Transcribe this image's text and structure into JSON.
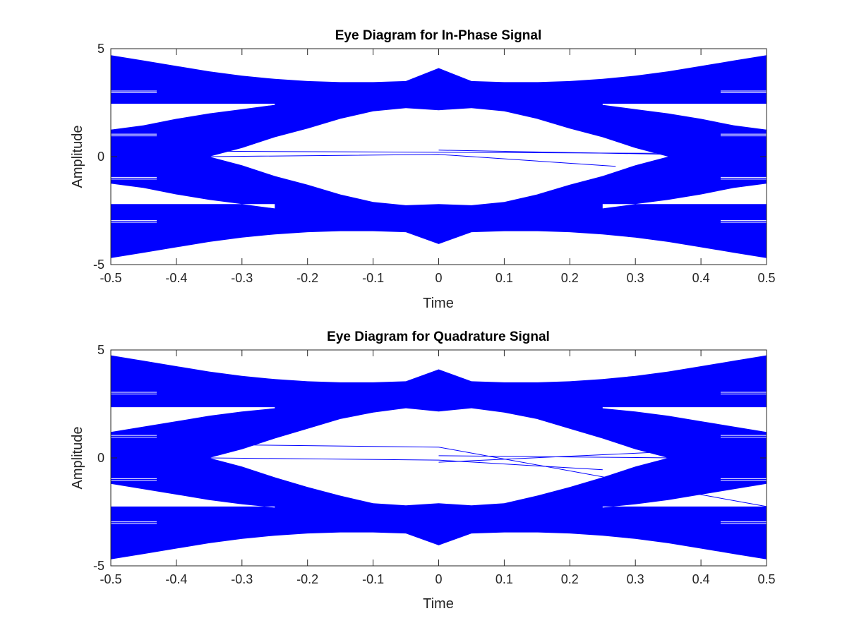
{
  "chart_data": [
    {
      "type": "line",
      "title": "Eye Diagram for In-Phase Signal",
      "xlabel": "Time",
      "ylabel": "Amplitude",
      "xlim": [
        -0.5,
        0.5
      ],
      "ylim": [
        -5,
        5
      ],
      "xticks": [
        "-0.5",
        "-0.4",
        "-0.3",
        "-0.2",
        "-0.1",
        "0",
        "0.1",
        "0.2",
        "0.3",
        "0.4",
        "0.5"
      ],
      "yticks": [
        "-5",
        "0",
        "5"
      ],
      "series_color": "#0000ff",
      "levels": [
        -3,
        -1,
        1,
        3
      ],
      "x": [
        -0.5,
        -0.45,
        -0.4,
        -0.35,
        -0.3,
        -0.25,
        -0.2,
        -0.15,
        -0.1,
        -0.05,
        0,
        0.05,
        0.1,
        0.15,
        0.2,
        0.25,
        0.3,
        0.35,
        0.4,
        0.45,
        0.5
      ],
      "envelope_upper": [
        4.7,
        4.45,
        4.2,
        3.95,
        3.75,
        3.6,
        3.5,
        3.45,
        3.45,
        3.5,
        4.1,
        3.5,
        3.45,
        3.45,
        3.5,
        3.6,
        3.75,
        3.95,
        4.2,
        4.45,
        4.7
      ],
      "envelope_lower": [
        -4.7,
        -4.45,
        -4.2,
        -3.95,
        -3.75,
        -3.6,
        -3.5,
        -3.45,
        -3.45,
        -3.5,
        -4.05,
        -3.5,
        -3.45,
        -3.45,
        -3.5,
        -3.6,
        -3.75,
        -3.95,
        -4.2,
        -4.45,
        -4.7
      ],
      "eye_upper": [
        null,
        null,
        null,
        0.0,
        0.4,
        0.9,
        1.3,
        1.75,
        2.1,
        2.25,
        2.15,
        2.25,
        2.1,
        1.75,
        1.3,
        0.9,
        0.4,
        0.0,
        null,
        null,
        null
      ],
      "eye_lower": [
        null,
        null,
        null,
        0.0,
        -0.4,
        -0.9,
        -1.3,
        -1.75,
        -2.1,
        -2.25,
        -2.2,
        -2.25,
        -2.1,
        -1.75,
        -1.3,
        -0.9,
        -0.4,
        0.0,
        null,
        null,
        null
      ],
      "outer_gap_upper": {
        "x": [
          -0.5,
          -0.45,
          -0.4,
          -0.35,
          -0.3,
          -0.25
        ],
        "top": [
          2.45,
          2.45,
          2.45,
          2.45,
          2.45,
          2.45
        ],
        "bottom": [
          1.25,
          1.45,
          1.75,
          2.0,
          2.2,
          2.4
        ]
      },
      "outer_gap_lower": {
        "x": [
          -0.5,
          -0.45,
          -0.4,
          -0.35,
          -0.3,
          -0.25
        ],
        "top": [
          -1.25,
          -1.45,
          -1.75,
          -2.0,
          -2.2,
          -2.4
        ],
        "bottom": [
          -2.2,
          -2.2,
          -2.2,
          -2.2,
          -2.2,
          -2.2
        ]
      },
      "stray_traces": [
        {
          "x": [
            -0.35,
            0.36
          ],
          "y": [
            0.25,
            0.15
          ]
        },
        {
          "x": [
            -0.35,
            0.0,
            0.27
          ],
          "y": [
            0.0,
            0.1,
            -0.45
          ]
        },
        {
          "x": [
            0.0,
            0.36
          ],
          "y": [
            0.3,
            0.1
          ]
        }
      ]
    },
    {
      "type": "line",
      "title": "Eye Diagram for Quadrature Signal",
      "xlabel": "Time",
      "ylabel": "Amplitude",
      "xlim": [
        -0.5,
        0.5
      ],
      "ylim": [
        -5,
        5
      ],
      "xticks": [
        "-0.5",
        "-0.4",
        "-0.3",
        "-0.2",
        "-0.1",
        "0",
        "0.1",
        "0.2",
        "0.3",
        "0.4",
        "0.5"
      ],
      "yticks": [
        "-5",
        "0",
        "5"
      ],
      "series_color": "#0000ff",
      "levels": [
        -3,
        -1,
        1,
        3
      ],
      "x": [
        -0.5,
        -0.45,
        -0.4,
        -0.35,
        -0.3,
        -0.25,
        -0.2,
        -0.15,
        -0.1,
        -0.05,
        0,
        0.05,
        0.1,
        0.15,
        0.2,
        0.25,
        0.3,
        0.35,
        0.4,
        0.45,
        0.5
      ],
      "envelope_upper": [
        4.75,
        4.5,
        4.25,
        4.0,
        3.8,
        3.65,
        3.55,
        3.5,
        3.5,
        3.55,
        4.1,
        3.55,
        3.5,
        3.5,
        3.55,
        3.65,
        3.8,
        4.0,
        4.25,
        4.5,
        4.75
      ],
      "envelope_lower": [
        -4.7,
        -4.45,
        -4.2,
        -3.95,
        -3.75,
        -3.6,
        -3.5,
        -3.45,
        -3.45,
        -3.5,
        -4.05,
        -3.5,
        -3.45,
        -3.45,
        -3.5,
        -3.6,
        -3.75,
        -3.95,
        -4.2,
        -4.45,
        -4.7
      ],
      "eye_upper": [
        null,
        null,
        null,
        0.0,
        0.4,
        0.9,
        1.35,
        1.8,
        2.1,
        2.3,
        2.15,
        2.3,
        2.1,
        1.8,
        1.35,
        0.9,
        0.4,
        0.0,
        null,
        null,
        null
      ],
      "eye_lower": [
        null,
        null,
        null,
        0.0,
        -0.4,
        -0.9,
        -1.35,
        -1.75,
        -2.1,
        -2.2,
        -2.1,
        -2.2,
        -2.1,
        -1.75,
        -1.35,
        -0.9,
        -0.4,
        0.0,
        null,
        null,
        null
      ],
      "outer_gap_upper": {
        "x": [
          -0.5,
          -0.45,
          -0.4,
          -0.35,
          -0.3,
          -0.25
        ],
        "top": [
          2.35,
          2.35,
          2.35,
          2.35,
          2.35,
          2.35
        ],
        "bottom": [
          1.2,
          1.45,
          1.7,
          1.95,
          2.15,
          2.3
        ]
      },
      "outer_gap_lower": {
        "x": [
          -0.5,
          -0.45,
          -0.4,
          -0.35,
          -0.3,
          -0.25
        ],
        "top": [
          -1.2,
          -1.45,
          -1.7,
          -1.95,
          -2.15,
          -2.3
        ],
        "bottom": [
          -2.25,
          -2.25,
          -2.25,
          -2.25,
          -2.25,
          -2.25
        ]
      },
      "stray_traces": [
        {
          "x": [
            -0.35,
            0.0,
            0.25
          ],
          "y": [
            0.0,
            -0.1,
            -0.55
          ]
        },
        {
          "x": [
            -0.3,
            0.0,
            0.5
          ],
          "y": [
            0.6,
            0.5,
            -2.25
          ]
        },
        {
          "x": [
            0.0,
            0.36
          ],
          "y": [
            0.1,
            0.0
          ]
        },
        {
          "x": [
            0.0,
            0.36
          ],
          "y": [
            -0.2,
            0.3
          ]
        }
      ]
    }
  ]
}
